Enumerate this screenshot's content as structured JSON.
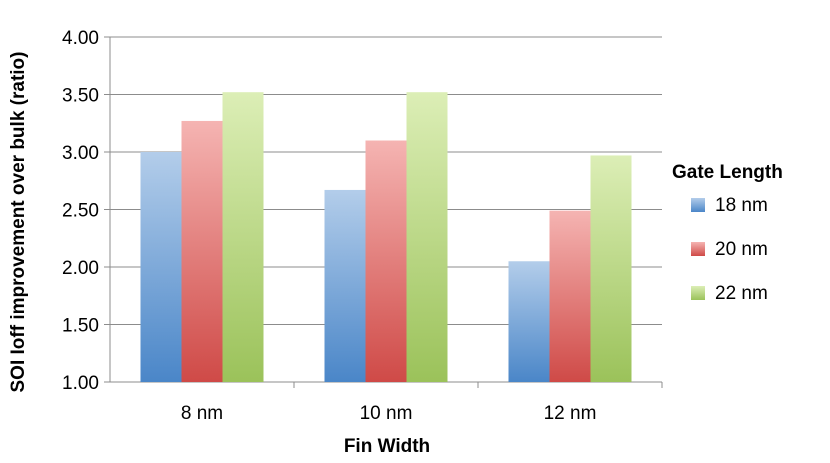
{
  "chart_data": {
    "type": "bar",
    "title": "",
    "xlabel": "Fin Width",
    "ylabel": "SOI Ioff improvement over bulk (ratio)",
    "ylim": [
      1.0,
      4.0
    ],
    "yticks": [
      "1.00",
      "1.50",
      "2.00",
      "2.50",
      "3.00",
      "3.50",
      "4.00"
    ],
    "grid": true,
    "categories": [
      "8 nm",
      "10 nm",
      "12 nm"
    ],
    "legend_title": "Gate Length",
    "legend_position": "right",
    "series": [
      {
        "name": "18 nm",
        "values": [
          3.0,
          2.67,
          2.05
        ],
        "color_top": "#b3cdea",
        "color_bottom": "#4a86c8"
      },
      {
        "name": "20 nm",
        "values": [
          3.27,
          3.1,
          2.49
        ],
        "color_top": "#f5b4b2",
        "color_bottom": "#cf4a47"
      },
      {
        "name": "22 nm",
        "values": [
          3.52,
          3.52,
          2.97
        ],
        "color_top": "#dceeb6",
        "color_bottom": "#9bc25a"
      }
    ]
  }
}
